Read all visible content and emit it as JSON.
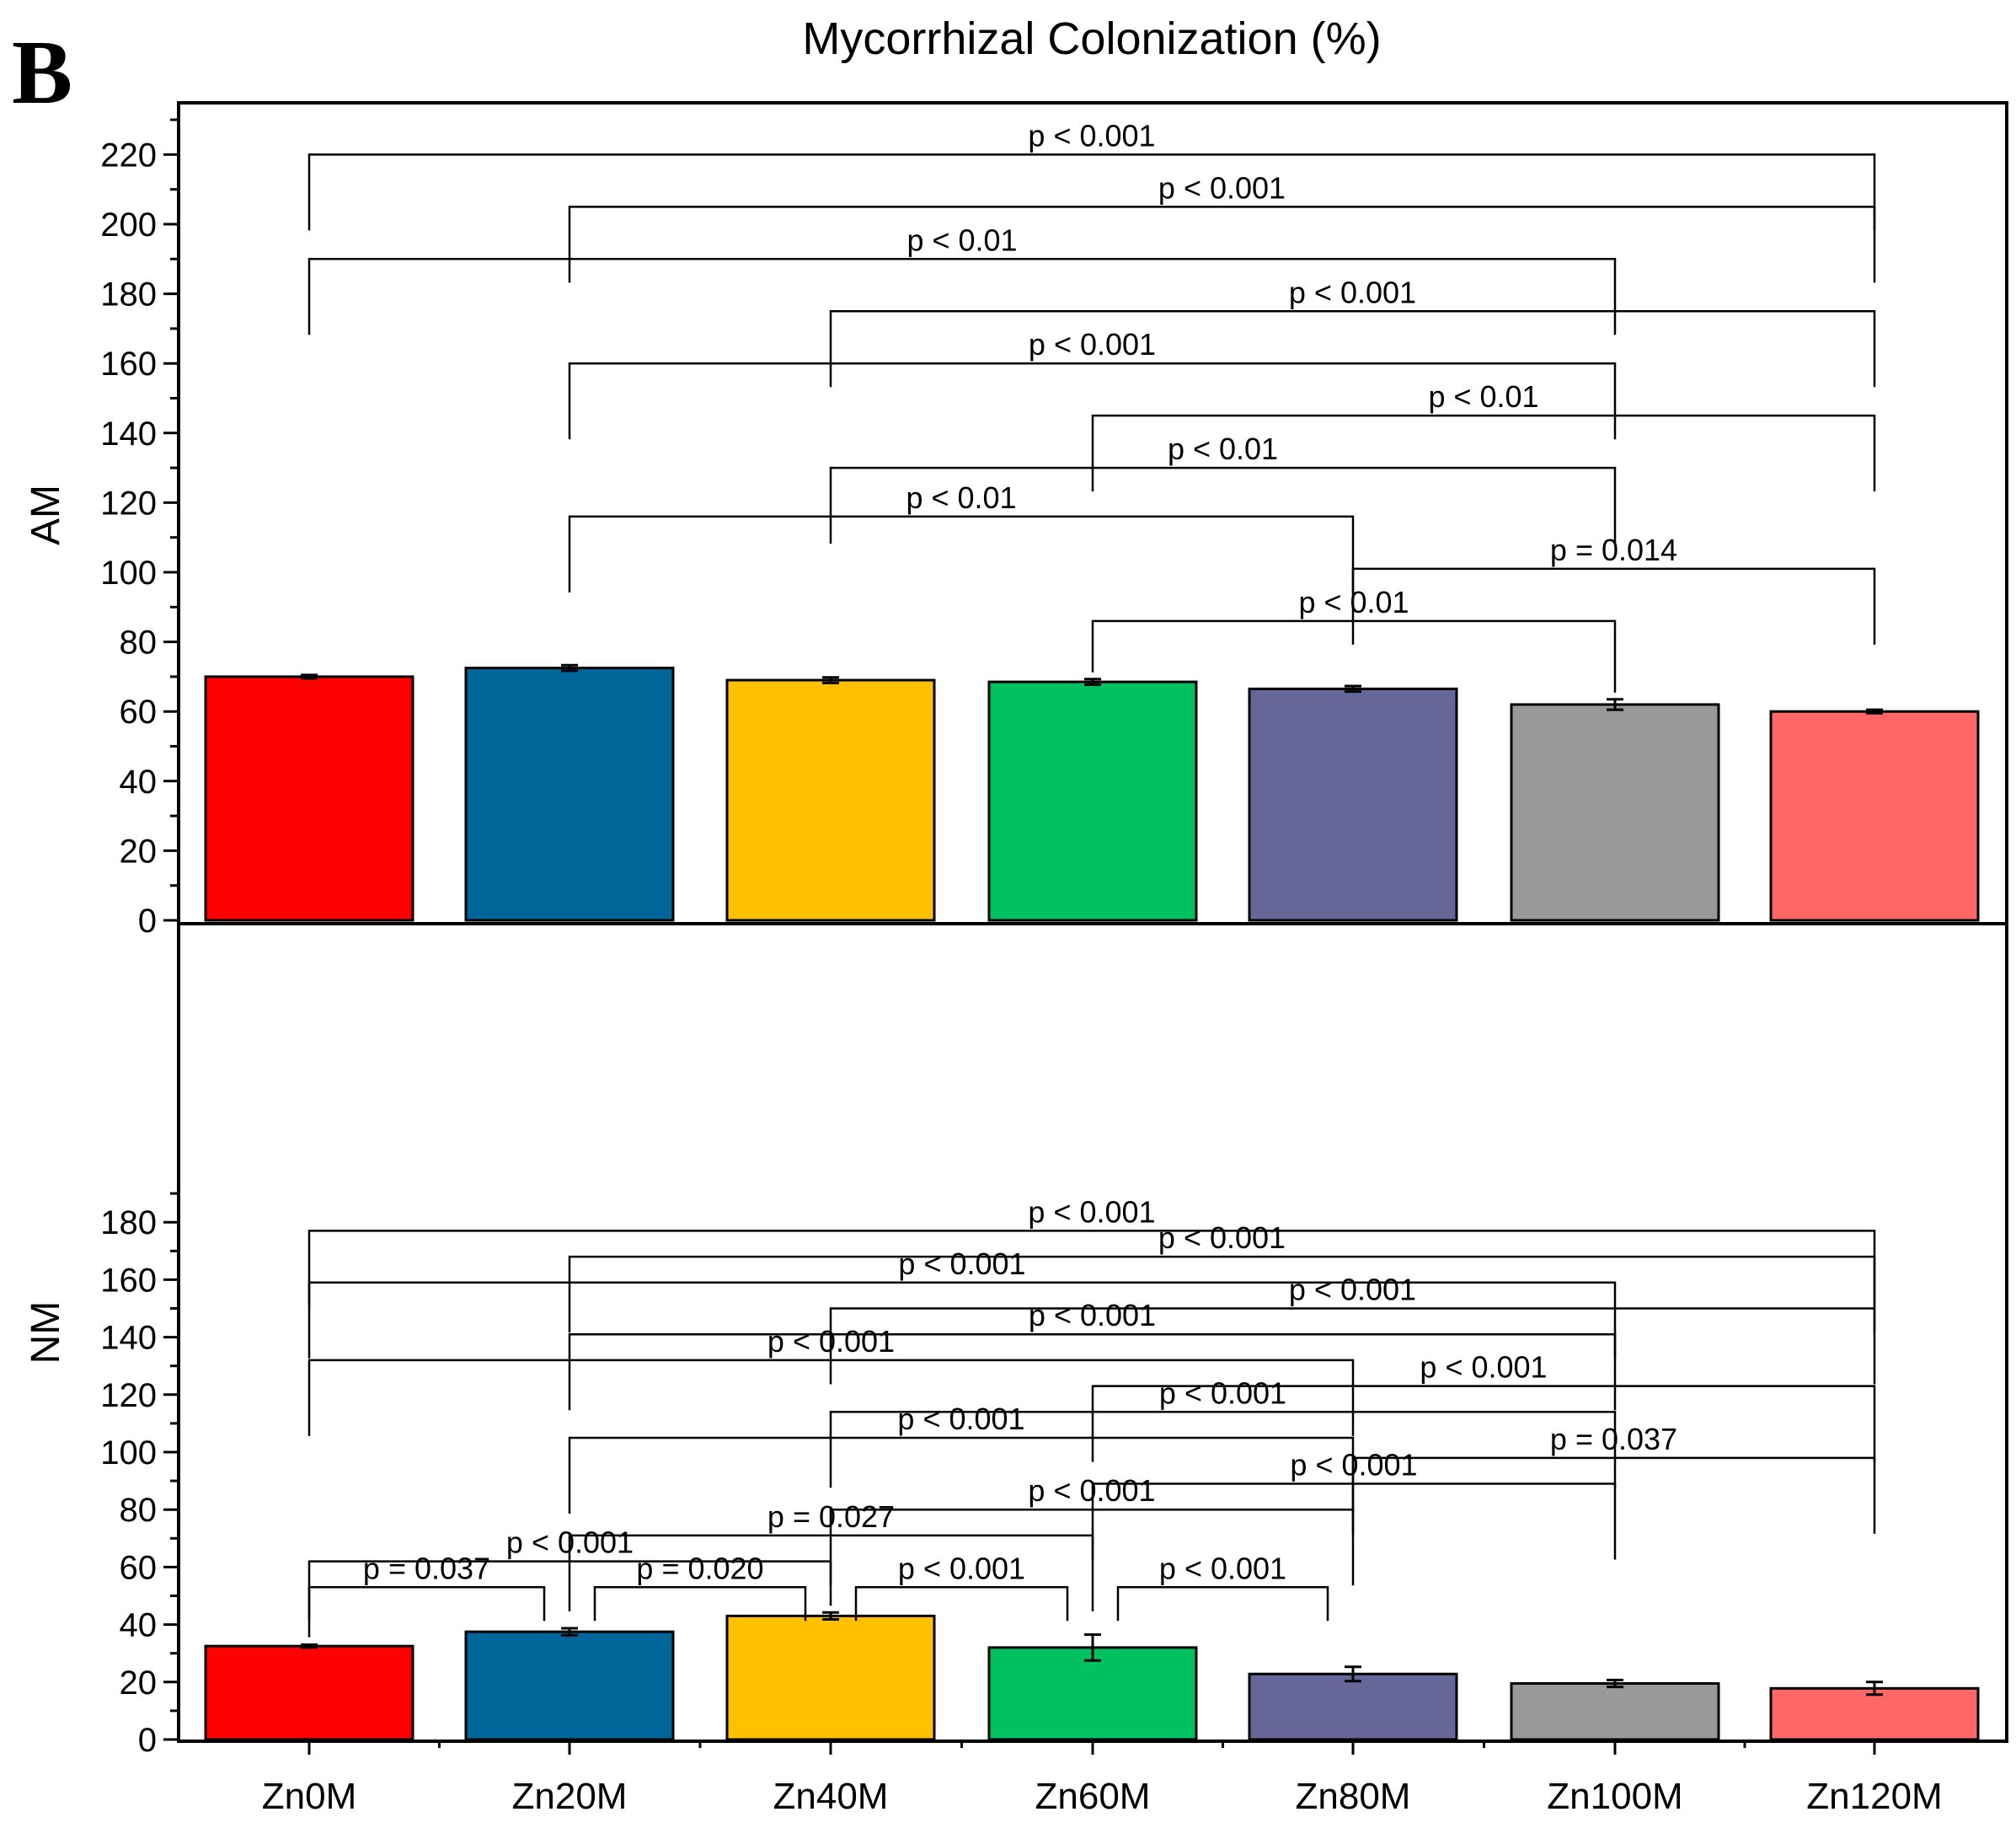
{
  "figure": {
    "panel_label": "B",
    "title": "Mycorrhizal Colonization (%)"
  },
  "colors": {
    "Zn0M": "#ff0000",
    "Zn20M": "#006699",
    "Zn40M": "#ffc000",
    "Zn60M": "#00c060",
    "Zn80M": "#666699",
    "Zn100M": "#999999",
    "Zn120M": "#ff6666"
  },
  "chart_data": [
    {
      "type": "bar",
      "panel": "AM",
      "title": "Mycorrhizal Colonization (%)",
      "xlabel": "",
      "ylabel": "AM",
      "ylim": [
        0,
        230
      ],
      "yticks": [
        0,
        20,
        40,
        60,
        80,
        100,
        120,
        140,
        160,
        180,
        200,
        220
      ],
      "categories": [
        "Zn0M",
        "Zn20M",
        "Zn40M",
        "Zn60M",
        "Zn80M",
        "Zn100M",
        "Zn120M"
      ],
      "values": [
        70,
        72.5,
        69,
        68.5,
        66.5,
        62,
        60
      ],
      "errors": [
        0.5,
        0.8,
        0.8,
        0.8,
        0.8,
        1.5,
        0.5
      ],
      "brackets": [
        {
          "from": "Zn0M",
          "to": "Zn120M",
          "y": 220,
          "label": "p < 0.001"
        },
        {
          "from": "Zn20M",
          "to": "Zn120M",
          "y": 205,
          "label": "p < 0.001"
        },
        {
          "from": "Zn0M",
          "to": "Zn100M",
          "y": 190,
          "label": "p < 0.01"
        },
        {
          "from": "Zn40M",
          "to": "Zn120M",
          "y": 175,
          "label": "p < 0.001"
        },
        {
          "from": "Zn20M",
          "to": "Zn100M",
          "y": 160,
          "label": "p < 0.001"
        },
        {
          "from": "Zn60M",
          "to": "Zn120M",
          "y": 145,
          "label": "p < 0.01"
        },
        {
          "from": "Zn40M",
          "to": "Zn100M",
          "y": 130,
          "label": "p < 0.01"
        },
        {
          "from": "Zn20M",
          "to": "Zn80M",
          "y": 116,
          "label": "p < 0.01"
        },
        {
          "from": "Zn80M",
          "to": "Zn120M",
          "y": 101,
          "label": "p = 0.014"
        },
        {
          "from": "Zn60M",
          "to": "Zn100M",
          "y": 86,
          "label": "p < 0.01"
        }
      ]
    },
    {
      "type": "bar",
      "panel": "NM",
      "xlabel": "",
      "ylabel": "NM",
      "ylim": [
        0,
        190
      ],
      "yticks": [
        0,
        20,
        40,
        60,
        80,
        100,
        120,
        140,
        160,
        180
      ],
      "categories": [
        "Zn0M",
        "Zn20M",
        "Zn40M",
        "Zn60M",
        "Zn80M",
        "Zn100M",
        "Zn120M"
      ],
      "values": [
        32.5,
        37.5,
        43,
        32,
        22.8,
        19.5,
        17.8
      ],
      "errors": [
        0.5,
        1.2,
        1.2,
        4.5,
        2.5,
        1.2,
        2.2
      ],
      "brackets": [
        {
          "from": "Zn0M",
          "to": "Zn120M",
          "y": 177,
          "label": "p < 0.001"
        },
        {
          "from": "Zn20M",
          "to": "Zn120M",
          "y": 168,
          "label": "p < 0.001"
        },
        {
          "from": "Zn0M",
          "to": "Zn100M",
          "y": 159,
          "label": "p < 0.001"
        },
        {
          "from": "Zn40M",
          "to": "Zn120M",
          "y": 150,
          "label": "p < 0.001"
        },
        {
          "from": "Zn20M",
          "to": "Zn100M",
          "y": 141,
          "label": "p < 0.001"
        },
        {
          "from": "Zn0M",
          "to": "Zn80M",
          "y": 132,
          "label": "p < 0.001"
        },
        {
          "from": "Zn60M",
          "to": "Zn120M",
          "y": 123,
          "label": "p < 0.001"
        },
        {
          "from": "Zn40M",
          "to": "Zn100M",
          "y": 114,
          "label": "p < 0.001"
        },
        {
          "from": "Zn20M",
          "to": "Zn80M",
          "y": 105,
          "label": "p < 0.001"
        },
        {
          "from": "Zn80M",
          "to": "Zn120M",
          "y": 98,
          "label": "p = 0.037"
        },
        {
          "from": "Zn60M",
          "to": "Zn100M",
          "y": 89,
          "label": "p < 0.001"
        },
        {
          "from": "Zn40M",
          "to": "Zn80M",
          "y": 80,
          "label": "p < 0.001"
        },
        {
          "from": "Zn20M",
          "to": "Zn60M",
          "y": 71,
          "label": "p = 0.027"
        },
        {
          "from": "Zn0M",
          "to": "Zn40M",
          "y": 62,
          "label": "p < 0.001"
        },
        {
          "from": "Zn0M",
          "to": "Zn20M",
          "y": 53,
          "label": "p = 0.037"
        },
        {
          "from": "Zn20M",
          "to": "Zn40M",
          "y": 53,
          "label": "p = 0.020"
        },
        {
          "from": "Zn40M",
          "to": "Zn60M",
          "y": 53,
          "label": "p < 0.001"
        },
        {
          "from": "Zn60M",
          "to": "Zn80M",
          "y": 53,
          "label": "p < 0.001"
        }
      ]
    }
  ]
}
